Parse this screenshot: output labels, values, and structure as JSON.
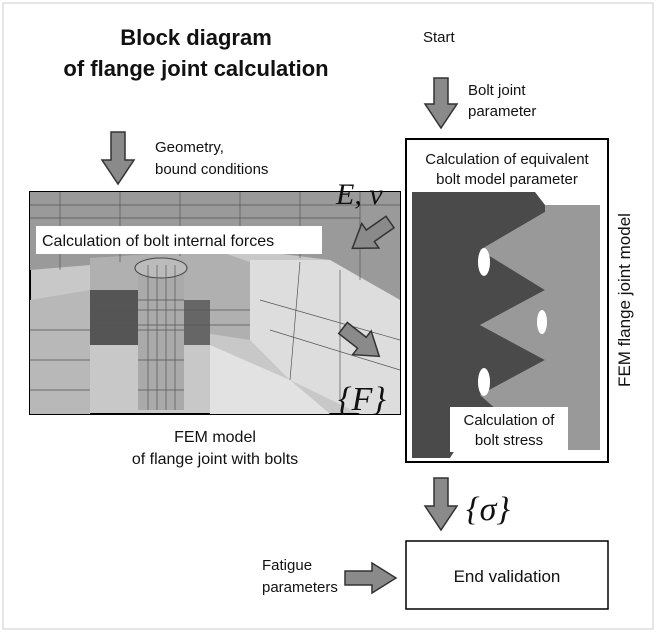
{
  "title": [
    "Block diagram",
    "of flange joint calculation"
  ],
  "start": "Start",
  "bolt_joint_parameter": [
    "Bolt joint",
    "parameter"
  ],
  "geometry": [
    "Geometry,",
    "bound conditions"
  ],
  "material": "E, ν",
  "internal_forces": "Calculation of bolt internal forces",
  "equivalent_parameter": [
    "Calculation of equivalent",
    "bolt model parameter"
  ],
  "fem_flange_model": "FEM flange joint model",
  "forces": "{F}",
  "bolt_stress": [
    "Calculation of",
    "bolt stress"
  ],
  "fem_model_caption": [
    "FEM model",
    "of flange joint with bolts"
  ],
  "stress": "{σ}",
  "fatigue": [
    "Fatigue",
    "parameters"
  ],
  "end_validation": "End validation"
}
